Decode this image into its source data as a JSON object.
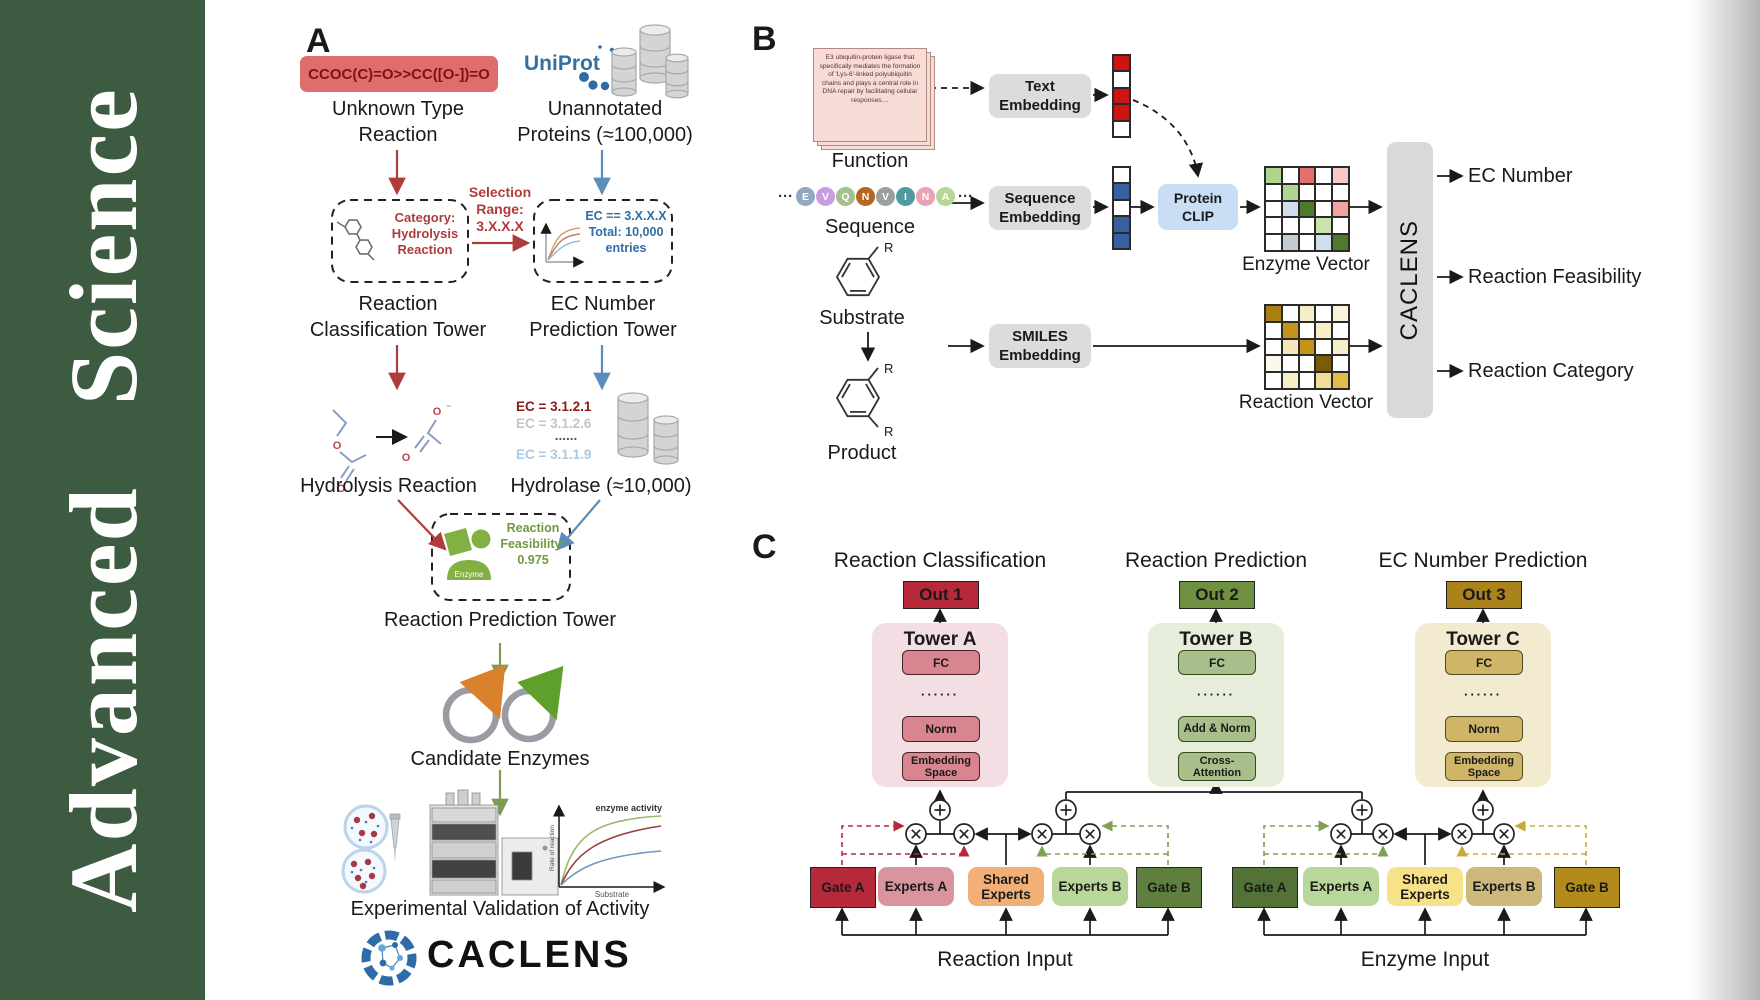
{
  "sidebar": {
    "journal": "Advanced Science"
  },
  "colors": {
    "sidebar_green": "#3d5b41",
    "accent_red": "#b03b3b",
    "accent_blue": "#5b8db8",
    "accent_olive": "#7d9b55",
    "smiles_box": "#e06c6c",
    "uniprot_blue": "#3470a0",
    "tower_a_pink": "#f3dee3",
    "tower_b_green": "#e6edda",
    "tower_c_tan": "#f2ebcf",
    "out1": "#b5293b",
    "out2": "#6f9040",
    "out3": "#ab831d",
    "gate_a_reaction": "#b5293b",
    "gate_b_reaction": "#5f7f3f",
    "gate_a_enzyme": "#527237",
    "gate_b_enzyme": "#b38b1d",
    "shared_reaction": "#f2b077",
    "shared_enzyme": "#f8e289"
  },
  "panelA": {
    "label": "A",
    "smiles": "CCOC(C)=O>>CC([O-])=O",
    "uniprot": "UniProt",
    "unknown": "Unknown Type\nReaction",
    "unannotated": "Unannotated\nProteins (≈100,000)",
    "selection": "Selection\nRange:\n3.X.X.X",
    "category": "Category:\nHydrolysis\nReaction",
    "ec_box": "EC == 3.X.X.X\nTotal: 10,000\nentries",
    "rct": "Reaction\nClassification Tower",
    "ect": "EC Number\nPrediction Tower",
    "ec1": "EC = 3.1.2.1",
    "ec2": "EC = 3.1.2.6",
    "ec3": "......",
    "ec4": "EC = 3.1.1.9",
    "hydrolysis": "Hydrolysis Reaction",
    "hydrolase": "Hydrolase (≈10,000)",
    "feasibility": "Reaction\nFeasibility:\n0.975",
    "enzyme_label": "Enzyme",
    "rpt": "Reaction Prediction Tower",
    "candidates": "Candidate Enzymes",
    "experimental": "Experimental Validation of Activity",
    "graph": {
      "title": "enzyme activity",
      "ylabel": "Rate of reaction",
      "xlabel": "Substrate"
    },
    "caclens": "CACLENS"
  },
  "panelB": {
    "label": "B",
    "function_text": "E3 ubiquitin-protein ligase that specifically mediates the formation of 'Lys-6'-linked polyubiquitin chains and plays a central role in DNA repair by facilitating cellular responses....",
    "function": "Function",
    "sequence": "Sequence",
    "dots": "···",
    "residues": [
      {
        "ch": "E",
        "color": "#8fa8c4"
      },
      {
        "ch": "V",
        "color": "#c79de0"
      },
      {
        "ch": "Q",
        "color": "#a3c18a"
      },
      {
        "ch": "N",
        "color": "#b5671f"
      },
      {
        "ch": "V",
        "color": "#9aa0a0"
      },
      {
        "ch": "I",
        "color": "#4f9aa0"
      },
      {
        "ch": "N",
        "color": "#e9a2b4"
      },
      {
        "ch": "A",
        "color": "#b5d694"
      }
    ],
    "substrate": "Substrate",
    "product": "Product",
    "r_label": "R",
    "text_embedding": "Text\nEmbedding",
    "sequence_embedding": "Sequence\nEmbedding",
    "smiles_embedding": "SMILES\nEmbedding",
    "protein_clip": "Protein\nCLIP",
    "enzyme_vector": "Enzyme Vector",
    "reaction_vector": "Reaction Vector",
    "caclens": "CACLENS",
    "out1": "EC Number",
    "out2": "Reaction Feasibility",
    "out3": "Reaction Category",
    "text_vec_cells": [
      "#cc1414",
      "#ffffff",
      "#cc1414",
      "#cc1414",
      "#ffffff"
    ],
    "seq_vec_cells": [
      "#ffffff",
      "#3a5f9e",
      "#ffffff",
      "#3a5f9e",
      "#3a5f9e"
    ],
    "enzyme_cells": [
      "#aed68f",
      "#ffffff",
      "#e4706d",
      "#ffffff",
      "#f6c9c7",
      "#ffffff",
      "#aed68f",
      "#ffffff",
      "#ffffff",
      "#ffffff",
      "#ffffff",
      "#cfdff0",
      "#4f7a2b",
      "#ffffff",
      "#f0a3a3",
      "#ffffff",
      "#ffffff",
      "#ffffff",
      "#c9e3ad",
      "#ffffff",
      "#ffffff",
      "#c3cdd4",
      "#ffffff",
      "#cfdff0",
      "#4f7a2b"
    ],
    "reaction_cells": [
      "#ad7f10",
      "#ffffff",
      "#f6eec6",
      "#ffffff",
      "#faf3d8",
      "#ffffff",
      "#c49416",
      "#ffffff",
      "#f6eec6",
      "#ffffff",
      "#ffffff",
      "#f3e7bb",
      "#c49416",
      "#ffffff",
      "#f6eec6",
      "#fdf9ea",
      "#ffffff",
      "#ffffff",
      "#7a5c06",
      "#ffffff",
      "#ffffff",
      "#f6eec6",
      "#ffffff",
      "#f0dd9a",
      "#e0bc4a"
    ]
  },
  "panelC": {
    "label": "C",
    "titles": [
      "Reaction Classification",
      "Reaction Prediction",
      "EC Number Prediction"
    ],
    "outs": [
      "Out 1",
      "Out 2",
      "Out 3"
    ],
    "towers": [
      "Tower A",
      "Tower B",
      "Tower C"
    ],
    "fc": "FC",
    "dots": "······",
    "norm": "Norm",
    "add_norm": "Add & Norm",
    "embedding": "Embedding\nSpace",
    "cross": "Cross-\nAttention",
    "gate_a": "Gate A",
    "experts_a": "Experts A",
    "shared": "Shared\nExperts",
    "experts_b": "Experts B",
    "gate_b": "Gate B",
    "reaction_input": "Reaction Input",
    "enzyme_input": "Enzyme Input"
  }
}
